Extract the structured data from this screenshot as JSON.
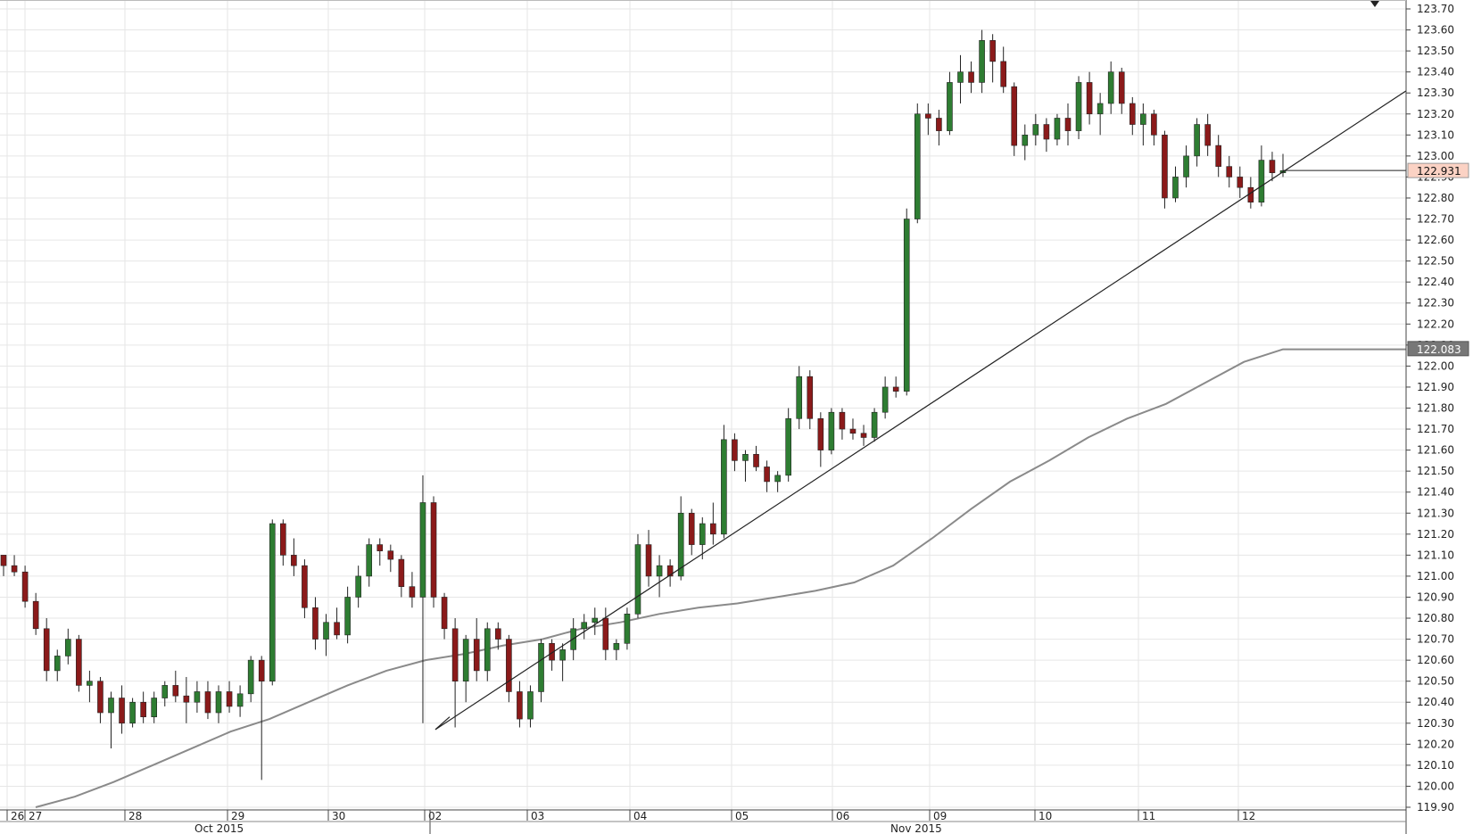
{
  "chart_data": {
    "type": "candlestick",
    "title": "",
    "xlabel": "",
    "ylabel": "",
    "ylim": [
      119.9,
      123.7
    ],
    "y_ticks": [
      "123.70",
      "123.60",
      "123.50",
      "123.40",
      "123.30",
      "123.20",
      "123.10",
      "123.00",
      "122.90",
      "122.80",
      "122.70",
      "122.60",
      "122.50",
      "122.40",
      "122.30",
      "122.20",
      "122.10",
      "122.00",
      "121.90",
      "121.80",
      "121.70",
      "121.60",
      "121.50",
      "121.40",
      "121.30",
      "121.20",
      "121.10",
      "121.00",
      "120.90",
      "120.80",
      "120.70",
      "120.60",
      "120.50",
      "120.40",
      "120.30",
      "120.20",
      "120.10",
      "120.00",
      "119.90"
    ],
    "x_day_labels": [
      "26",
      "27",
      "28",
      "29",
      "30",
      "02",
      "03",
      "04",
      "05",
      "06",
      "09",
      "10",
      "11",
      "12"
    ],
    "x_month_labels": [
      "Oct 2015",
      "Nov 2015"
    ],
    "grid": true,
    "current_price": "122.931",
    "moving_average_last": "122.083",
    "candles": [
      [
        121.1,
        121.1,
        121.0,
        121.05
      ],
      [
        121.05,
        121.1,
        121.0,
        121.02
      ],
      [
        121.02,
        121.05,
        120.85,
        120.88
      ],
      [
        120.88,
        120.92,
        120.72,
        120.75
      ],
      [
        120.75,
        120.8,
        120.5,
        120.55
      ],
      [
        120.55,
        120.65,
        120.5,
        120.62
      ],
      [
        120.62,
        120.75,
        120.58,
        120.7
      ],
      [
        120.7,
        120.72,
        120.45,
        120.48
      ],
      [
        120.48,
        120.55,
        120.4,
        120.5
      ],
      [
        120.5,
        120.52,
        120.3,
        120.35
      ],
      [
        120.35,
        120.45,
        120.18,
        120.42
      ],
      [
        120.42,
        120.48,
        120.25,
        120.3
      ],
      [
        120.3,
        120.42,
        120.28,
        120.4
      ],
      [
        120.4,
        120.45,
        120.3,
        120.33
      ],
      [
        120.33,
        120.45,
        120.3,
        120.42
      ],
      [
        120.42,
        120.5,
        120.38,
        120.48
      ],
      [
        120.48,
        120.55,
        120.4,
        120.43
      ],
      [
        120.43,
        120.52,
        120.3,
        120.4
      ],
      [
        120.4,
        120.5,
        120.35,
        120.45
      ],
      [
        120.45,
        120.5,
        120.32,
        120.35
      ],
      [
        120.35,
        120.48,
        120.3,
        120.45
      ],
      [
        120.45,
        120.5,
        120.35,
        120.38
      ],
      [
        120.38,
        120.48,
        120.33,
        120.44
      ],
      [
        120.44,
        120.62,
        120.4,
        120.6
      ],
      [
        120.6,
        120.62,
        120.03,
        120.5
      ],
      [
        120.5,
        121.27,
        120.48,
        121.25
      ],
      [
        121.25,
        121.27,
        121.05,
        121.1
      ],
      [
        121.1,
        121.18,
        121.0,
        121.05
      ],
      [
        121.05,
        121.08,
        120.8,
        120.85
      ],
      [
        120.85,
        120.9,
        120.65,
        120.7
      ],
      [
        120.7,
        120.82,
        120.62,
        120.78
      ],
      [
        120.78,
        120.85,
        120.7,
        120.72
      ],
      [
        120.72,
        120.95,
        120.68,
        120.9
      ],
      [
        120.9,
        121.05,
        120.85,
        121.0
      ],
      [
        121.0,
        121.18,
        120.95,
        121.15
      ],
      [
        121.15,
        121.18,
        121.05,
        121.12
      ],
      [
        121.12,
        121.15,
        121.02,
        121.08
      ],
      [
        121.08,
        121.1,
        120.9,
        120.95
      ],
      [
        120.95,
        121.02,
        120.85,
        120.9
      ],
      [
        120.9,
        121.48,
        120.3,
        121.35
      ],
      [
        121.35,
        121.38,
        120.85,
        120.9
      ],
      [
        120.9,
        120.92,
        120.7,
        120.75
      ],
      [
        120.75,
        120.8,
        120.28,
        120.5
      ],
      [
        120.5,
        120.72,
        120.4,
        120.7
      ],
      [
        120.7,
        120.8,
        120.5,
        120.55
      ],
      [
        120.55,
        120.78,
        120.5,
        120.75
      ],
      [
        120.75,
        120.78,
        120.65,
        120.7
      ],
      [
        120.7,
        120.72,
        120.4,
        120.45
      ],
      [
        120.45,
        120.5,
        120.28,
        120.32
      ],
      [
        120.32,
        120.48,
        120.28,
        120.45
      ],
      [
        120.45,
        120.7,
        120.4,
        120.68
      ],
      [
        120.68,
        120.7,
        120.55,
        120.6
      ],
      [
        120.6,
        120.68,
        120.5,
        120.65
      ],
      [
        120.65,
        120.8,
        120.6,
        120.75
      ],
      [
        120.75,
        120.82,
        120.7,
        120.78
      ],
      [
        120.78,
        120.85,
        120.72,
        120.8
      ],
      [
        120.8,
        120.85,
        120.6,
        120.65
      ],
      [
        120.65,
        120.7,
        120.6,
        120.68
      ],
      [
        120.68,
        120.85,
        120.65,
        120.82
      ],
      [
        120.82,
        121.2,
        120.8,
        121.15
      ],
      [
        121.15,
        121.22,
        120.95,
        121.0
      ],
      [
        121.0,
        121.1,
        120.9,
        121.05
      ],
      [
        121.05,
        121.08,
        120.95,
        121.0
      ],
      [
        121.0,
        121.38,
        120.98,
        121.3
      ],
      [
        121.3,
        121.32,
        121.1,
        121.15
      ],
      [
        121.15,
        121.28,
        121.08,
        121.25
      ],
      [
        121.25,
        121.35,
        121.15,
        121.2
      ],
      [
        121.2,
        121.72,
        121.18,
        121.65
      ],
      [
        121.65,
        121.68,
        121.5,
        121.55
      ],
      [
        121.55,
        121.6,
        121.45,
        121.58
      ],
      [
        121.58,
        121.62,
        121.5,
        121.52
      ],
      [
        121.52,
        121.55,
        121.4,
        121.45
      ],
      [
        121.45,
        121.5,
        121.4,
        121.48
      ],
      [
        121.48,
        121.8,
        121.45,
        121.75
      ],
      [
        121.75,
        122.0,
        121.7,
        121.95
      ],
      [
        121.95,
        121.98,
        121.7,
        121.75
      ],
      [
        121.75,
        121.78,
        121.52,
        121.6
      ],
      [
        121.6,
        121.8,
        121.58,
        121.78
      ],
      [
        121.78,
        121.8,
        121.65,
        121.7
      ],
      [
        121.7,
        121.75,
        121.65,
        121.68
      ],
      [
        121.68,
        121.72,
        121.62,
        121.66
      ],
      [
        121.66,
        121.8,
        121.64,
        121.78
      ],
      [
        121.78,
        121.95,
        121.75,
        121.9
      ],
      [
        121.9,
        121.95,
        121.85,
        121.88
      ],
      [
        121.88,
        122.75,
        121.86,
        122.7
      ],
      [
        122.7,
        123.25,
        122.68,
        123.2
      ],
      [
        123.2,
        123.25,
        123.1,
        123.18
      ],
      [
        123.18,
        123.22,
        123.05,
        123.12
      ],
      [
        123.12,
        123.4,
        123.1,
        123.35
      ],
      [
        123.35,
        123.48,
        123.25,
        123.4
      ],
      [
        123.4,
        123.45,
        123.3,
        123.35
      ],
      [
        123.35,
        123.6,
        123.3,
        123.55
      ],
      [
        123.55,
        123.58,
        123.35,
        123.45
      ],
      [
        123.45,
        123.52,
        123.3,
        123.33
      ],
      [
        123.33,
        123.35,
        123.0,
        123.05
      ],
      [
        123.05,
        123.15,
        122.98,
        123.1
      ],
      [
        123.1,
        123.2,
        123.05,
        123.15
      ],
      [
        123.15,
        123.18,
        123.02,
        123.08
      ],
      [
        123.08,
        123.2,
        123.05,
        123.18
      ],
      [
        123.18,
        123.25,
        123.05,
        123.12
      ],
      [
        123.12,
        123.38,
        123.08,
        123.35
      ],
      [
        123.35,
        123.4,
        123.15,
        123.2
      ],
      [
        123.2,
        123.3,
        123.1,
        123.25
      ],
      [
        123.25,
        123.45,
        123.2,
        123.4
      ],
      [
        123.4,
        123.42,
        123.2,
        123.25
      ],
      [
        123.25,
        123.28,
        123.1,
        123.15
      ],
      [
        123.15,
        123.25,
        123.05,
        123.2
      ],
      [
        123.2,
        123.22,
        123.05,
        123.1
      ],
      [
        123.1,
        123.12,
        122.75,
        122.8
      ],
      [
        122.8,
        122.95,
        122.78,
        122.9
      ],
      [
        122.9,
        123.05,
        122.85,
        123.0
      ],
      [
        123.0,
        123.18,
        122.95,
        123.15
      ],
      [
        123.15,
        123.2,
        123.0,
        123.05
      ],
      [
        123.05,
        123.1,
        122.9,
        122.95
      ],
      [
        122.95,
        123.0,
        122.85,
        122.9
      ],
      [
        122.9,
        122.95,
        122.8,
        122.85
      ],
      [
        122.85,
        122.9,
        122.75,
        122.78
      ],
      [
        122.78,
        123.05,
        122.76,
        122.98
      ],
      [
        122.98,
        123.02,
        122.88,
        122.92
      ],
      [
        122.92,
        123.01,
        122.9,
        122.93
      ]
    ],
    "moving_average": [
      119.9,
      119.95,
      120.02,
      120.1,
      120.18,
      120.26,
      120.32,
      120.4,
      120.48,
      120.55,
      120.6,
      120.63,
      120.67,
      120.7,
      120.75,
      120.78,
      120.82,
      120.85,
      120.87,
      120.9,
      120.93,
      120.97,
      121.05,
      121.18,
      121.32,
      121.45,
      121.55,
      121.66,
      121.75,
      121.82,
      121.92,
      122.02,
      122.08
    ]
  }
}
